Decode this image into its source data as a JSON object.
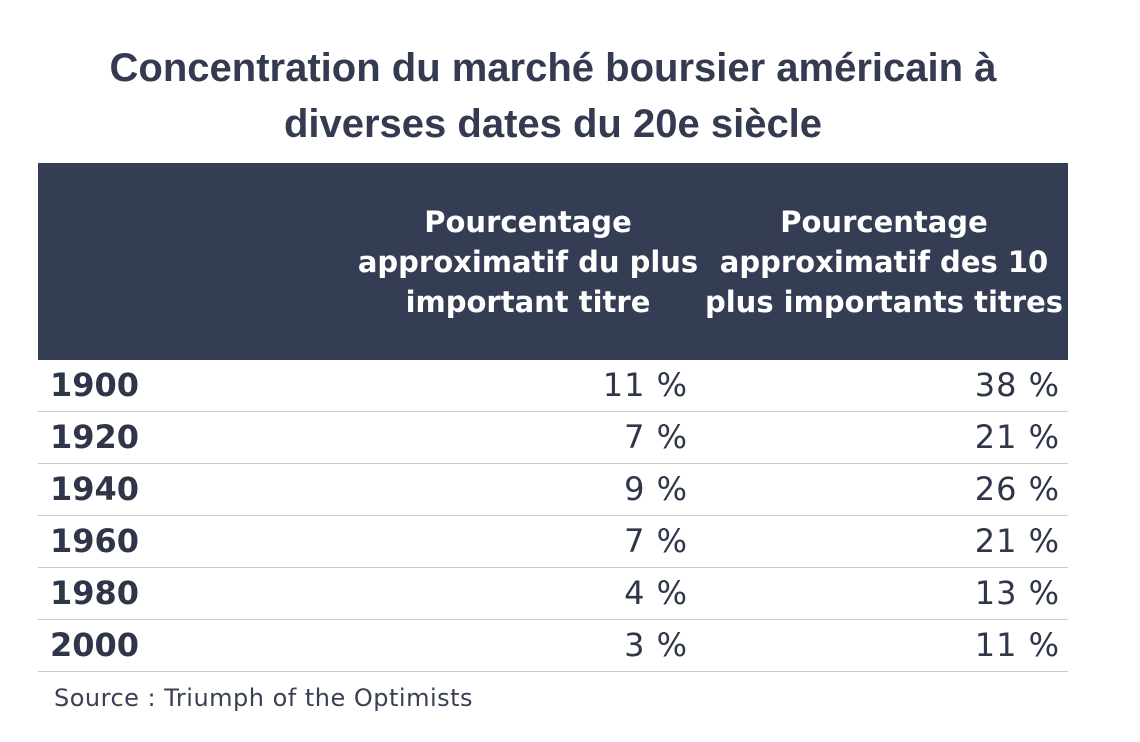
{
  "chart_data": {
    "type": "table",
    "title": "Concentration du marché boursier américain à diverses dates du 20e siècle",
    "columns": [
      "",
      "Pourcentage approximatif du plus important titre",
      "Pourcentage approximatif des 10 plus importants titres"
    ],
    "rows": [
      {
        "year": "1900",
        "largest": "11 %",
        "top10": "38 %"
      },
      {
        "year": "1920",
        "largest": "7 %",
        "top10": "21 %"
      },
      {
        "year": "1940",
        "largest": "9 %",
        "top10": "26 %"
      },
      {
        "year": "1960",
        "largest": "7 %",
        "top10": "21 %"
      },
      {
        "year": "1980",
        "largest": "4 %",
        "top10": "13 %"
      },
      {
        "year": "2000",
        "largest": "3 %",
        "top10": "11 %"
      }
    ],
    "source": "Source : Triumph of the Optimists"
  },
  "colors": {
    "header_bg": "#353d54",
    "header_text": "#ffffff",
    "body_text": "#2f364a",
    "row_divider": "#c9c9c9"
  }
}
